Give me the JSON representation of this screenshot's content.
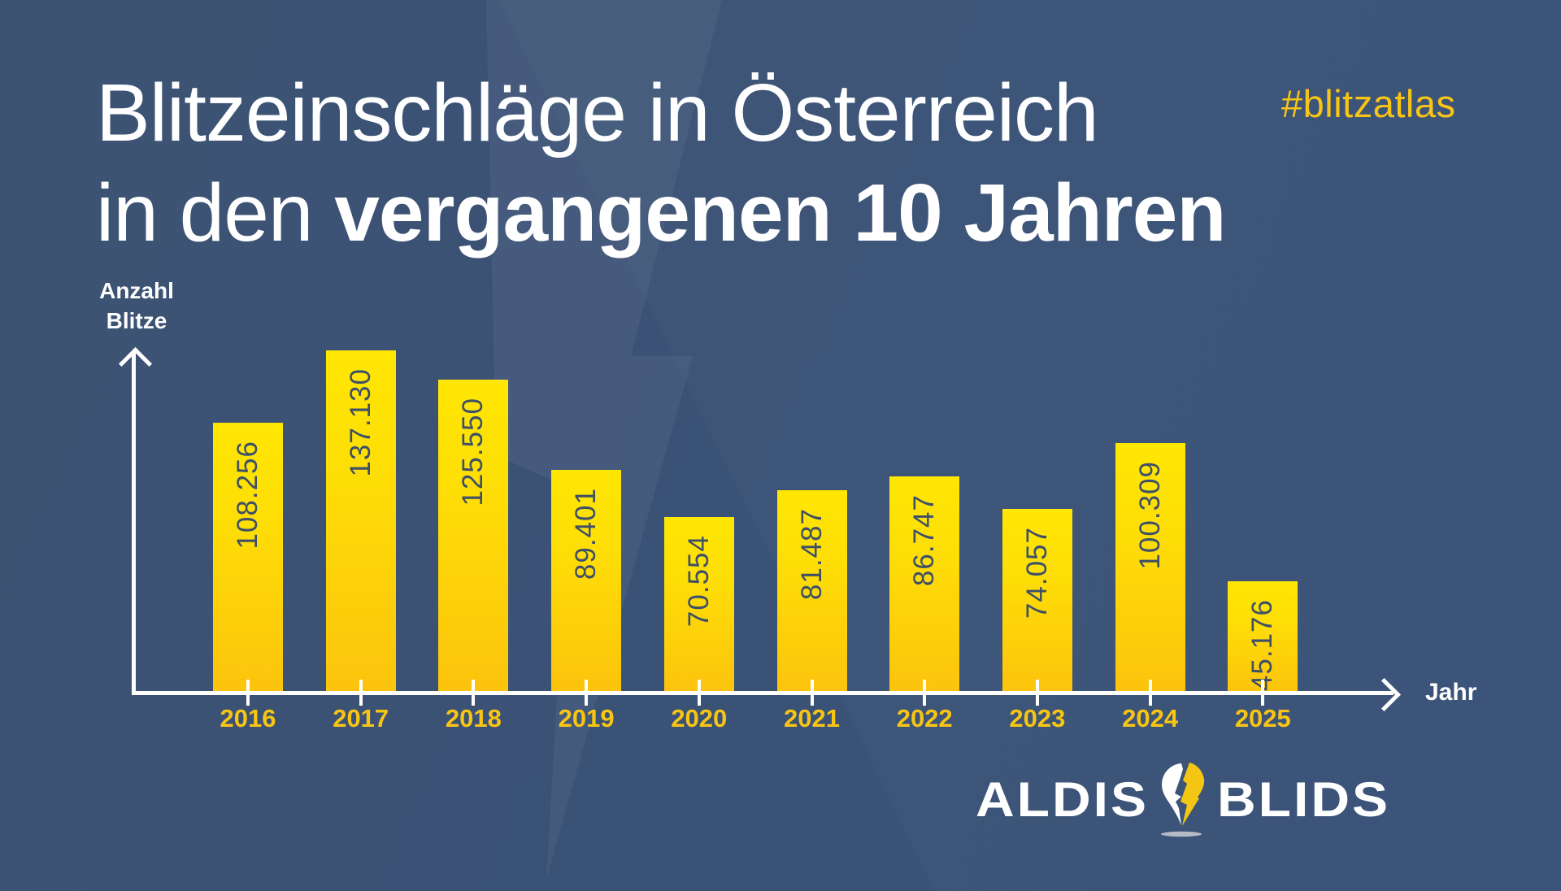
{
  "page": {
    "hashtag": "#blitzatlas"
  },
  "title": {
    "line1": "Blitzeinschläge in Österreich",
    "line2_light": "in den",
    "line2_bold": "vergangenen 10 Jahren"
  },
  "chart_data": {
    "type": "bar",
    "title": "Blitzeinschläge in Österreich in den vergangenen 10 Jahren",
    "categories": [
      "2016",
      "2017",
      "2018",
      "2019",
      "2020",
      "2021",
      "2022",
      "2023",
      "2024",
      "2025"
    ],
    "values": [
      108256,
      137130,
      125550,
      89401,
      70554,
      81487,
      86747,
      74057,
      100309,
      45176
    ],
    "value_labels": [
      "108.256",
      "137.130",
      "125.550",
      "89.401",
      "70.554",
      "81.487",
      "86.747",
      "74.057",
      "100.309",
      "45.176"
    ],
    "xlabel": "Jahr",
    "ylabel": "Anzahl Blitze",
    "ylabel_lines": [
      "Anzahl",
      "Blitze"
    ],
    "ylim": [
      0,
      137130
    ],
    "grid": false,
    "legend": false,
    "value_label_rotation": "bottom-to-top",
    "bar_color_top": "#ffe603",
    "bar_color_bottom": "#fcc30d"
  },
  "logo": {
    "word_left": "ALDIS",
    "word_right": "BLIDS",
    "icon": "lightning-pin-icon"
  },
  "colors": {
    "background": "#3a5276",
    "accent_yellow": "#f9c513",
    "text_white": "#ffffff",
    "bar_value_text": "#3d5068",
    "watermark": "rgba(255,255,255,0.05)"
  }
}
